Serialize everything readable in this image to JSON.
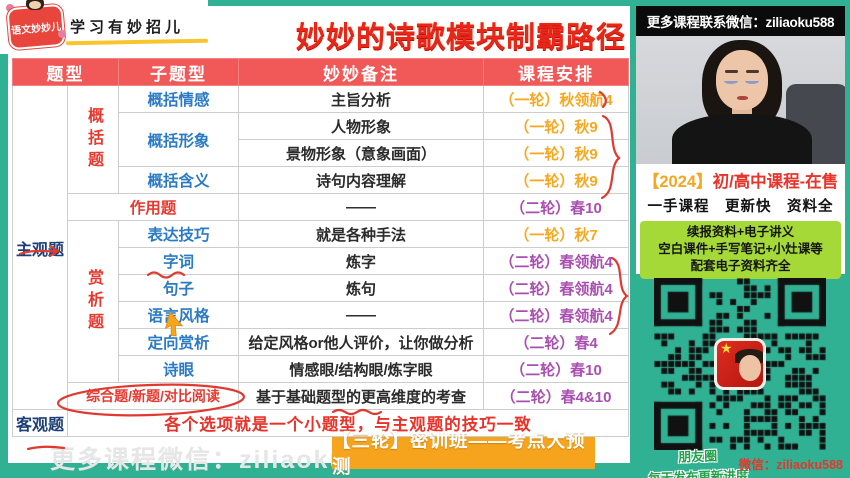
{
  "logo": {
    "brand": "语文妙妙儿",
    "tagline": "学习有妙招儿"
  },
  "title": "妙妙的诗歌模块制霸路径",
  "table": {
    "headers": [
      "题型",
      "子题型",
      "妙妙备注",
      "课程安排"
    ],
    "groups": {
      "subjective": "主观题",
      "objective": "客观题",
      "summary": "概括题",
      "appreciate": "赏析题"
    },
    "rows": [
      {
        "sub": "概括情感",
        "note": "主旨分析",
        "course": "（一轮）秋领航4"
      },
      {
        "sub": "概括形象",
        "note": "人物形象",
        "course": "（一轮）秋9"
      },
      {
        "note": "景物形象（意象画面）",
        "course": "（一轮）秋9"
      },
      {
        "sub": "概括含义",
        "note": "诗句内容理解",
        "course": "（一轮）秋9"
      },
      {
        "sub": "作用题",
        "note": "——",
        "course": "（二轮）春10"
      },
      {
        "sub": "表达技巧",
        "note": "就是各种手法",
        "course": "（一轮）秋7"
      },
      {
        "sub": "字词",
        "note": "炼字",
        "course": "（二轮）春领航4"
      },
      {
        "sub": "句子",
        "note": "炼句",
        "course": "（二轮）春领航4"
      },
      {
        "sub": "语言风格",
        "note": "——",
        "course": "（二轮）春领航4"
      },
      {
        "sub": "定向赏析",
        "note": "给定风格or他人评价，让你做分析",
        "course": "（二轮）春4"
      },
      {
        "sub": "诗眼",
        "note": "情感眼/结构眼/炼字眼",
        "course": "（二轮）春10"
      },
      {
        "sub": "综合题/新题/对比阅读",
        "note": "基于基础题型的更高维度的考查",
        "course": "（二轮）春4&10"
      },
      {
        "note": "各个选项就是一个小题型，与主观题的技巧一致"
      }
    ]
  },
  "footer": {
    "watermark": "更多课程微信：ziliaoku588",
    "badge": "【三轮】密训班——考点大预测"
  },
  "right_panel": {
    "contact_bar": "更多课程联系微信：ziliaoku588",
    "sale_prefix": "【2024】",
    "sale_text": "初/高中课程-在售",
    "features": "一手课程　更新快　资料全",
    "materials": [
      "续报资料+电子讲义",
      "空白课件+手写笔记+小灶课等",
      "配套电子资料齐全"
    ],
    "moments_line1": "朋友圈",
    "moments_line2": "每天发布更新进度",
    "wechat": "微信：ziliaoku588"
  },
  "colors": {
    "frame_teal": "#31b193",
    "header_red": "#f15958",
    "course_round1_orange": "#f7a821",
    "course_round2_purple": "#a94fb0",
    "subtype_blue": "#2b7bc4",
    "category_red": "#e63a30",
    "type_navy": "#1c3f77",
    "badge_orange": "#f6a41d",
    "materials_green": "#a5d937"
  }
}
